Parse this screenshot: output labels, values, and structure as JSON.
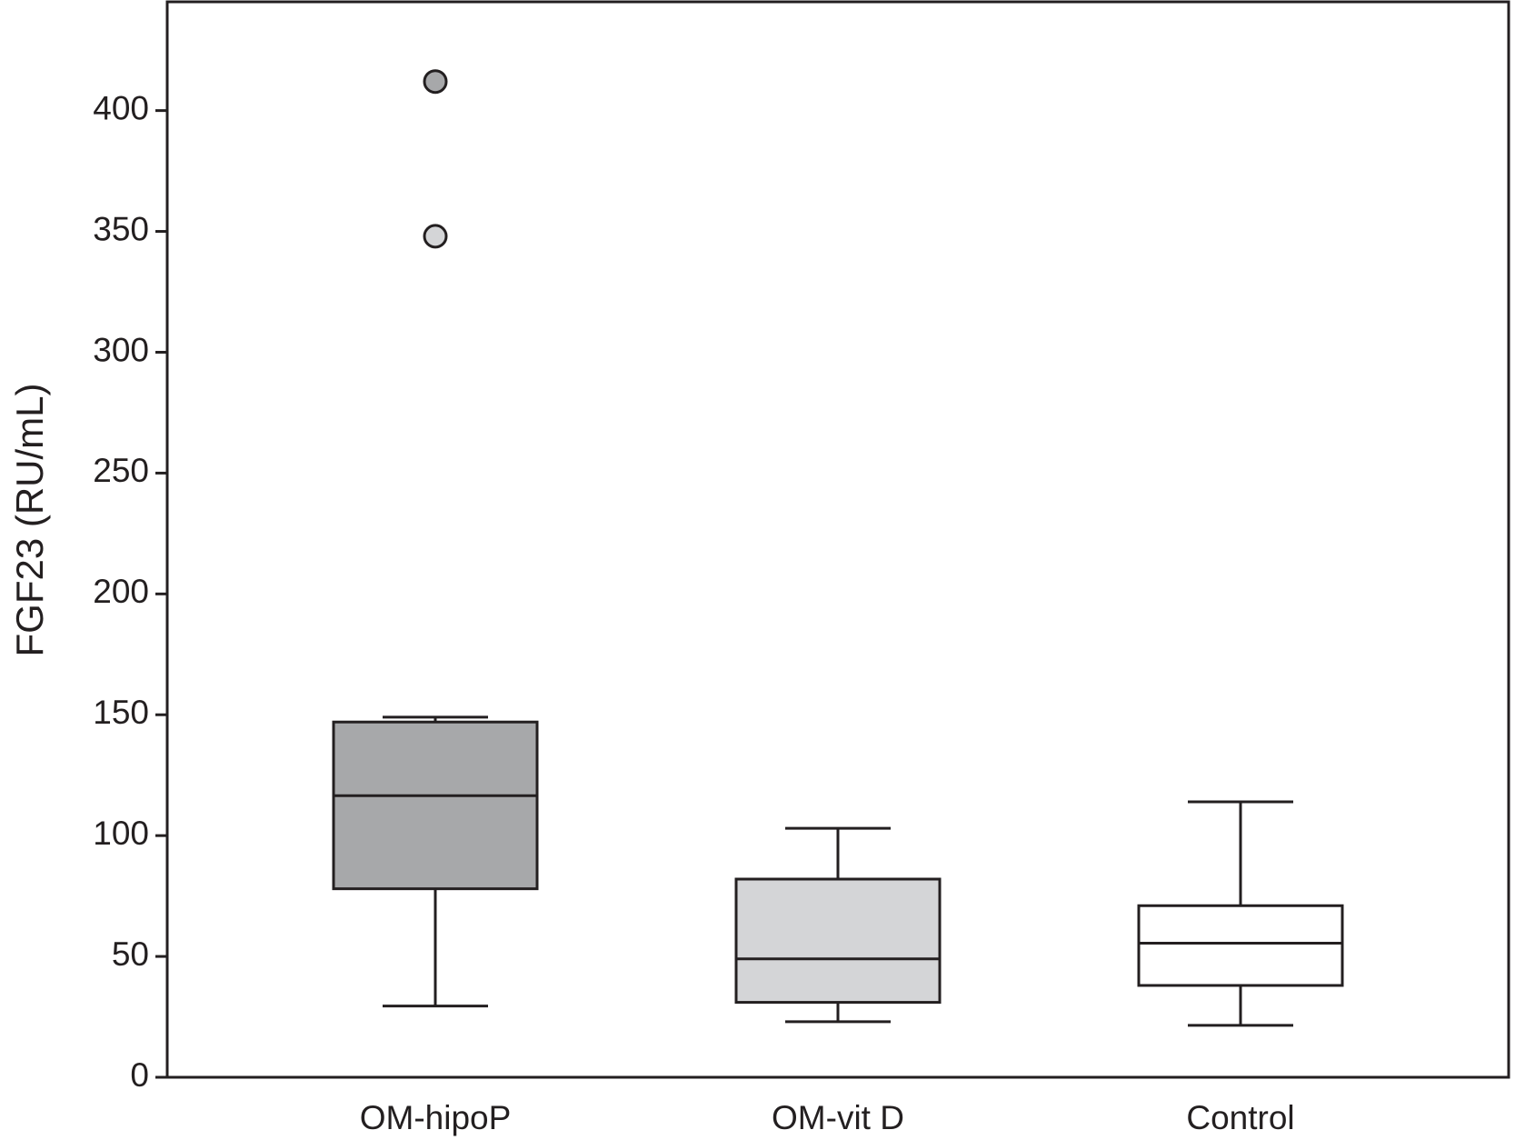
{
  "chart_data": {
    "type": "box",
    "y_label": "FGF23 (RU/mL)",
    "categories": [
      "OM-hipoP",
      "OM-vit D",
      "Control"
    ],
    "boxes": [
      {
        "whisker_low": 29.5,
        "q1": 78,
        "median": 116.5,
        "q3": 147,
        "whisker_high": 149,
        "color": "#a7a8aa",
        "outliers": [
          412,
          348
        ],
        "outlier_colors": [
          "#a7a8aa",
          "#d4d5d7"
        ]
      },
      {
        "whisker_low": 23,
        "q1": 31,
        "median": 49,
        "q3": 82,
        "whisker_high": 103,
        "color": "#d4d5d7",
        "outliers": [],
        "outlier_colors": []
      },
      {
        "whisker_low": 21.5,
        "q1": 38,
        "median": 55.5,
        "q3": 71,
        "whisker_high": 114,
        "color": "#ffffff",
        "outliers": [],
        "outlier_colors": []
      }
    ],
    "ylim": [
      0,
      445
    ],
    "yticks": [
      0,
      50,
      100,
      150,
      200,
      250,
      300,
      350,
      400
    ]
  }
}
